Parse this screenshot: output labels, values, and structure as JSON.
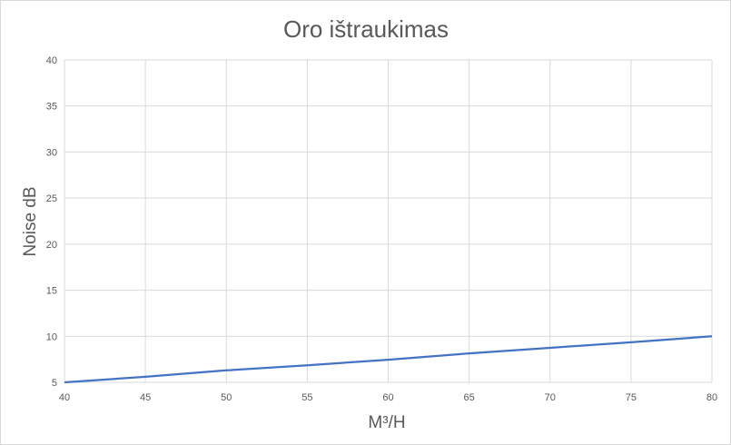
{
  "chart_data": {
    "type": "line",
    "title": "Oro ištraukimas",
    "xlabel": "M³/H",
    "ylabel": "Noise dB",
    "xlim": [
      40,
      80
    ],
    "ylim": [
      5,
      40
    ],
    "xticks": [
      40,
      45,
      50,
      55,
      60,
      65,
      70,
      75,
      80
    ],
    "yticks": [
      5,
      10,
      15,
      20,
      25,
      30,
      35,
      40
    ],
    "grid": true,
    "legend": "none",
    "series": [
      {
        "color": "#4472c4",
        "x": [
          40,
          45,
          50,
          55,
          60,
          65,
          70,
          75,
          80
        ],
        "y": [
          5.0,
          5.6,
          6.3,
          6.85,
          7.45,
          8.15,
          8.75,
          9.35,
          10.0
        ]
      }
    ]
  }
}
